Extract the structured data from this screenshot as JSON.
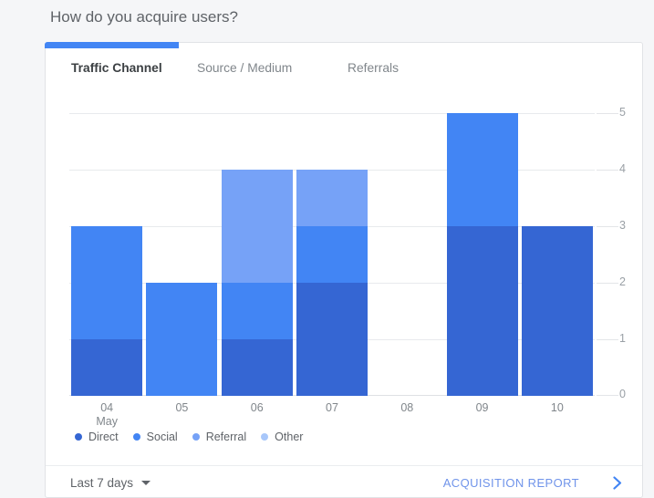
{
  "header": {
    "title": "How do you acquire users?"
  },
  "tabs": [
    {
      "label": "Traffic Channel",
      "active": true
    },
    {
      "label": "Source / Medium",
      "active": false
    },
    {
      "label": "Referrals",
      "active": false
    }
  ],
  "chart_data": {
    "type": "bar",
    "stacked": true,
    "categories": [
      "04",
      "05",
      "06",
      "07",
      "08",
      "09",
      "10"
    ],
    "x_month_label": "May",
    "x_month_index": 0,
    "series": [
      {
        "name": "Direct",
        "color": "#3566D3",
        "values": [
          1,
          0,
          1,
          2,
          0,
          3,
          3
        ]
      },
      {
        "name": "Social",
        "color": "#4285F4",
        "values": [
          2,
          2,
          1,
          1,
          0,
          2,
          0
        ]
      },
      {
        "name": "Referral",
        "color": "#76A2F7",
        "values": [
          0,
          0,
          2,
          1,
          0,
          0,
          0
        ]
      },
      {
        "name": "Other",
        "color": "#A8C7FA",
        "values": [
          0,
          0,
          0,
          0,
          0,
          0,
          0
        ]
      }
    ],
    "totals": [
      3,
      2,
      4,
      4,
      0,
      5,
      3
    ],
    "ylim": [
      0,
      5
    ],
    "yticks": [
      0,
      1,
      2,
      3,
      4,
      5
    ],
    "ylabel": "",
    "xlabel": "",
    "grid": "horizontal",
    "legend_position": "bottom",
    "y_axis_side": "right"
  },
  "footer": {
    "period_label": "Last 7 days",
    "report_label": "ACQUISITION REPORT"
  },
  "colors": {
    "accent": "#4285F4",
    "tab_indicator": "#4285F4",
    "link_text": "#7094EA",
    "chevron": "#4285F4",
    "gridline": "#E8EAED",
    "axis_text": "#9AA0A6",
    "page_background": "#F5F6F8",
    "card_background": "#FFFFFF"
  }
}
